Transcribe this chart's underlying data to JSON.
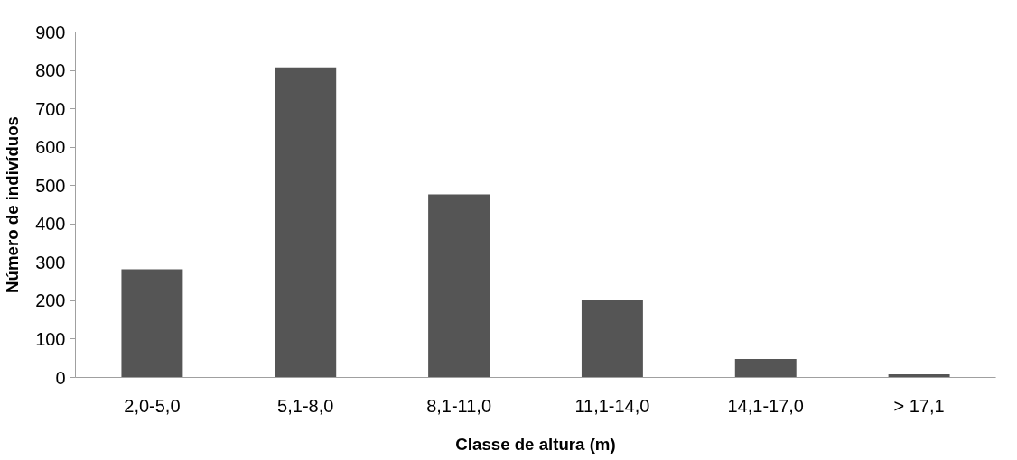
{
  "chart_data": {
    "type": "bar",
    "xlabel": "Classe de altura (m)",
    "ylabel": "Número de indivíduos",
    "categories": [
      "2,0-5,0",
      "5,1-8,0",
      "8,1-11,0",
      "11,1-14,0",
      "14,1-17,0",
      "> 17,1"
    ],
    "values": [
      282,
      808,
      477,
      201,
      48,
      8
    ],
    "color": "#555555",
    "ylim": [
      0,
      900
    ],
    "yticks": [
      0,
      100,
      200,
      300,
      400,
      500,
      600,
      700,
      800,
      900
    ],
    "grid": false
  }
}
